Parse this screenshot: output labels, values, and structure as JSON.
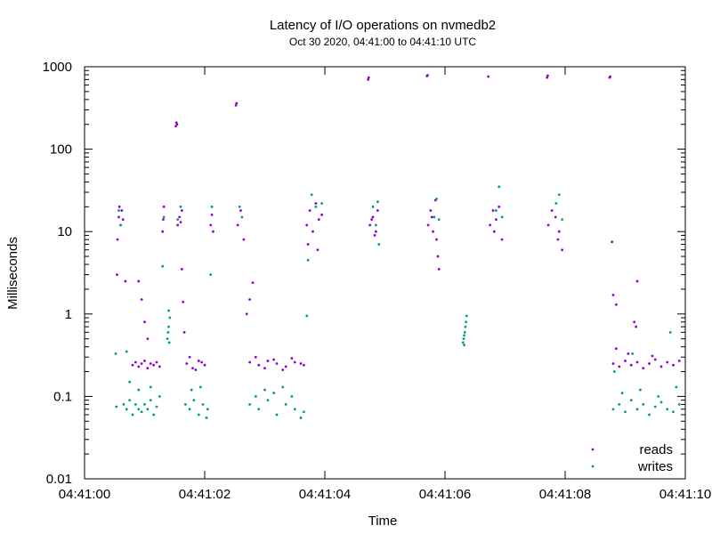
{
  "chart_data": {
    "type": "scatter",
    "title": "Latency of I/O operations on nvmedb2",
    "subtitle": "Oct 30 2020, 04:41:00 to 04:41:10 UTC",
    "xlabel": "Time",
    "ylabel": "Milliseconds",
    "xlim": [
      "04:41:00",
      "04:41:10"
    ],
    "x_ticks": [
      "04:41:00",
      "04:41:02",
      "04:41:04",
      "04:41:06",
      "04:41:08",
      "04:41:10"
    ],
    "ylim": [
      0.01,
      1000
    ],
    "y_scale": "log",
    "y_ticks": [
      "0.01",
      "0.1",
      "1",
      "10",
      "100",
      "1000"
    ],
    "grid": false,
    "legend_position": "bottom-right",
    "series": [
      {
        "name": "reads",
        "color": "#9400d3",
        "points": [
          [
            "04:41:00.54",
            3.0
          ],
          [
            "04:41:00.55",
            8.0
          ],
          [
            "04:41:00.57",
            15
          ],
          [
            "04:41:00.58",
            20
          ],
          [
            "04:41:00.60",
            12
          ],
          [
            "04:41:00.62",
            18
          ],
          [
            "04:41:00.64",
            14
          ],
          [
            "04:41:00.68",
            2.5
          ],
          [
            "04:41:00.80",
            0.24
          ],
          [
            "04:41:00.85",
            0.26
          ],
          [
            "04:41:00.90",
            0.23
          ],
          [
            "04:41:00.95",
            0.25
          ],
          [
            "04:41:01.00",
            0.27
          ],
          [
            "04:41:01.05",
            0.22
          ],
          [
            "04:41:01.10",
            0.25
          ],
          [
            "04:41:01.15",
            0.24
          ],
          [
            "04:41:01.20",
            0.26
          ],
          [
            "04:41:01.25",
            0.23
          ],
          [
            "04:41:00.90",
            2.5
          ],
          [
            "04:41:00.95",
            1.5
          ],
          [
            "04:41:01.00",
            0.8
          ],
          [
            "04:41:01.05",
            0.5
          ],
          [
            "04:41:01.30",
            10
          ],
          [
            "04:41:01.31",
            14
          ],
          [
            "04:41:01.32",
            20
          ],
          [
            "04:41:01.52",
            190
          ],
          [
            "04:41:01.53",
            210
          ],
          [
            "04:41:01.54",
            200
          ],
          [
            "04:41:01.55",
            12
          ],
          [
            "04:41:01.58",
            15
          ],
          [
            "04:41:01.60",
            13
          ],
          [
            "04:41:01.62",
            18
          ],
          [
            "04:41:01.62",
            3.5
          ],
          [
            "04:41:01.64",
            1.4
          ],
          [
            "04:41:01.66",
            0.6
          ],
          [
            "04:41:01.70",
            0.25
          ],
          [
            "04:41:01.80",
            0.22
          ],
          [
            "04:41:01.90",
            0.27
          ],
          [
            "04:41:02.00",
            0.24
          ],
          [
            "04:41:01.75",
            0.3
          ],
          [
            "04:41:01.85",
            0.21
          ],
          [
            "04:41:01.95",
            0.26
          ],
          [
            "04:41:02.10",
            12
          ],
          [
            "04:41:02.12",
            16
          ],
          [
            "04:41:02.14",
            10
          ],
          [
            "04:41:02.52",
            340
          ],
          [
            "04:41:02.53",
            360
          ],
          [
            "04:41:02.55",
            12
          ],
          [
            "04:41:02.60",
            18
          ],
          [
            "04:41:02.65",
            8
          ],
          [
            "04:41:02.70",
            1.0
          ],
          [
            "04:41:02.75",
            1.5
          ],
          [
            "04:41:02.80",
            2.4
          ],
          [
            "04:41:02.75",
            0.26
          ],
          [
            "04:41:02.90",
            0.24
          ],
          [
            "04:41:03.05",
            0.27
          ],
          [
            "04:41:03.20",
            0.25
          ],
          [
            "04:41:03.35",
            0.23
          ],
          [
            "04:41:03.50",
            0.26
          ],
          [
            "04:41:03.65",
            0.24
          ],
          [
            "04:41:02.85",
            0.3
          ],
          [
            "04:41:03.00",
            0.22
          ],
          [
            "04:41:03.15",
            0.28
          ],
          [
            "04:41:03.30",
            0.21
          ],
          [
            "04:41:03.45",
            0.29
          ],
          [
            "04:41:03.60",
            0.25
          ],
          [
            "04:41:03.70",
            12
          ],
          [
            "04:41:03.75",
            18
          ],
          [
            "04:41:03.80",
            10
          ],
          [
            "04:41:03.85",
            22
          ],
          [
            "04:41:03.90",
            14
          ],
          [
            "04:41:03.95",
            16
          ],
          [
            "04:41:03.72",
            7
          ],
          [
            "04:41:03.88",
            6
          ],
          [
            "04:41:04.72",
            700
          ],
          [
            "04:41:04.73",
            740
          ],
          [
            "04:41:04.75",
            12
          ],
          [
            "04:41:04.80",
            15
          ],
          [
            "04:41:04.85",
            10
          ],
          [
            "04:41:04.88",
            18
          ],
          [
            "04:41:04.78",
            14
          ],
          [
            "04:41:04.83",
            9
          ],
          [
            "04:41:05.70",
            770
          ],
          [
            "04:41:05.71",
            790
          ],
          [
            "04:41:05.72",
            12
          ],
          [
            "04:41:05.76",
            18
          ],
          [
            "04:41:05.80",
            10
          ],
          [
            "04:41:05.84",
            24
          ],
          [
            "04:41:05.78",
            15
          ],
          [
            "04:41:05.86",
            8
          ],
          [
            "04:41:05.88",
            5
          ],
          [
            "04:41:05.90",
            3.5
          ],
          [
            "04:41:06.72",
            760
          ],
          [
            "04:41:06.75",
            12
          ],
          [
            "04:41:06.80",
            18
          ],
          [
            "04:41:06.85",
            14
          ],
          [
            "04:41:06.90",
            20
          ],
          [
            "04:41:06.82",
            10
          ],
          [
            "04:41:06.95",
            8
          ],
          [
            "04:41:07.70",
            740
          ],
          [
            "04:41:07.71",
            780
          ],
          [
            "04:41:07.72",
            12
          ],
          [
            "04:41:07.78",
            18
          ],
          [
            "04:41:07.84",
            15
          ],
          [
            "04:41:07.90",
            10
          ],
          [
            "04:41:07.88",
            8
          ],
          [
            "04:41:07.95",
            6
          ],
          [
            "04:41:08.74",
            740
          ],
          [
            "04:41:08.75",
            760
          ],
          [
            "04:41:08.78",
            7.5
          ],
          [
            "04:41:08.80",
            1.7
          ],
          [
            "04:41:08.85",
            1.3
          ],
          [
            "04:41:09.20",
            2.5
          ],
          [
            "04:41:09.15",
            0.8
          ],
          [
            "04:41:09.18",
            0.7
          ],
          [
            "04:41:08.80",
            0.25
          ],
          [
            "04:41:08.90",
            0.23
          ],
          [
            "04:41:09.00",
            0.27
          ],
          [
            "04:41:09.10",
            0.24
          ],
          [
            "04:41:09.20",
            0.26
          ],
          [
            "04:41:09.30",
            0.22
          ],
          [
            "04:41:09.40",
            0.25
          ],
          [
            "04:41:09.50",
            0.28
          ],
          [
            "04:41:09.60",
            0.23
          ],
          [
            "04:41:09.70",
            0.26
          ],
          [
            "04:41:09.80",
            0.24
          ],
          [
            "04:41:09.90",
            0.27
          ],
          [
            "04:41:08.85",
            0.38
          ],
          [
            "04:41:09.05",
            0.33
          ],
          [
            "04:41:09.45",
            0.31
          ]
        ]
      },
      {
        "name": "writes",
        "color": "#009e73",
        "points": [
          [
            "04:41:00.52",
            0.33
          ],
          [
            "04:41:00.53",
            0.075
          ],
          [
            "04:41:00.57",
            18
          ],
          [
            "04:41:00.60",
            12
          ],
          [
            "04:41:00.65",
            0.08
          ],
          [
            "04:41:00.70",
            0.07
          ],
          [
            "04:41:00.75",
            0.09
          ],
          [
            "04:41:00.80",
            0.06
          ],
          [
            "04:41:00.85",
            0.08
          ],
          [
            "04:41:00.90",
            0.07
          ],
          [
            "04:41:00.95",
            0.065
          ],
          [
            "04:41:01.00",
            0.08
          ],
          [
            "04:41:01.05",
            0.07
          ],
          [
            "04:41:01.10",
            0.09
          ],
          [
            "04:41:01.15",
            0.06
          ],
          [
            "04:41:01.20",
            0.075
          ],
          [
            "04:41:00.70",
            0.35
          ],
          [
            "04:41:00.75",
            0.15
          ],
          [
            "04:41:00.90",
            0.12
          ],
          [
            "04:41:01.10",
            0.13
          ],
          [
            "04:41:01.25",
            0.1
          ],
          [
            "04:41:01.30",
            3.8
          ],
          [
            "04:41:01.32",
            15
          ],
          [
            "04:41:01.38",
            0.5
          ],
          [
            "04:41:01.39",
            0.6
          ],
          [
            "04:41:01.40",
            0.7
          ],
          [
            "04:41:01.41",
            0.45
          ],
          [
            "04:41:01.42",
            0.9
          ],
          [
            "04:41:01.40",
            1.1
          ],
          [
            "04:41:01.55",
            14
          ],
          [
            "04:41:01.60",
            20
          ],
          [
            "04:41:01.68",
            0.08
          ],
          [
            "04:41:01.75",
            0.07
          ],
          [
            "04:41:01.82",
            0.09
          ],
          [
            "04:41:01.90",
            0.06
          ],
          [
            "04:41:01.97",
            0.08
          ],
          [
            "04:41:02.05",
            0.07
          ],
          [
            "04:41:01.78",
            0.12
          ],
          [
            "04:41:01.93",
            0.13
          ],
          [
            "04:41:02.03",
            0.055
          ],
          [
            "04:41:02.10",
            3.0
          ],
          [
            "04:41:02.12",
            20
          ],
          [
            "04:41:02.58",
            20
          ],
          [
            "04:41:02.62",
            15
          ],
          [
            "04:41:02.75",
            0.08
          ],
          [
            "04:41:02.90",
            0.07
          ],
          [
            "04:41:03.05",
            0.09
          ],
          [
            "04:41:03.20",
            0.06
          ],
          [
            "04:41:03.35",
            0.08
          ],
          [
            "04:41:03.50",
            0.07
          ],
          [
            "04:41:03.65",
            0.065
          ],
          [
            "04:41:02.85",
            0.1
          ],
          [
            "04:41:03.00",
            0.12
          ],
          [
            "04:41:03.15",
            0.11
          ],
          [
            "04:41:03.30",
            0.13
          ],
          [
            "04:41:03.45",
            0.1
          ],
          [
            "04:41:03.60",
            0.055
          ],
          [
            "04:41:03.70",
            0.95
          ],
          [
            "04:41:03.72",
            4.5
          ],
          [
            "04:41:03.78",
            28
          ],
          [
            "04:41:03.85",
            20
          ],
          [
            "04:41:03.95",
            22
          ],
          [
            "04:41:04.80",
            20
          ],
          [
            "04:41:04.85",
            12
          ],
          [
            "04:41:04.90",
            7
          ],
          [
            "04:41:04.88",
            23
          ],
          [
            "04:41:05.82",
            15
          ],
          [
            "04:41:05.86",
            25
          ],
          [
            "04:41:05.90",
            14
          ],
          [
            "04:41:06.30",
            0.45
          ],
          [
            "04:41:06.31",
            0.5
          ],
          [
            "04:41:06.32",
            0.55
          ],
          [
            "04:41:06.33",
            0.6
          ],
          [
            "04:41:06.34",
            0.7
          ],
          [
            "04:41:06.35",
            0.8
          ],
          [
            "04:41:06.36",
            0.95
          ],
          [
            "04:41:06.32",
            0.42
          ],
          [
            "04:41:06.85",
            18
          ],
          [
            "04:41:06.90",
            35
          ],
          [
            "04:41:06.95",
            15
          ],
          [
            "04:41:07.85",
            22
          ],
          [
            "04:41:07.90",
            28
          ],
          [
            "04:41:07.95",
            14
          ],
          [
            "04:41:08.80",
            0.07
          ],
          [
            "04:41:08.90",
            0.08
          ],
          [
            "04:41:09.00",
            0.065
          ],
          [
            "04:41:09.10",
            0.09
          ],
          [
            "04:41:09.20",
            0.07
          ],
          [
            "04:41:09.30",
            0.08
          ],
          [
            "04:41:09.40",
            0.06
          ],
          [
            "04:41:09.50",
            0.075
          ],
          [
            "04:41:09.60",
            0.085
          ],
          [
            "04:41:09.70",
            0.07
          ],
          [
            "04:41:09.80",
            0.065
          ],
          [
            "04:41:09.90",
            0.08
          ],
          [
            "04:41:08.82",
            0.2
          ],
          [
            "04:41:08.95",
            0.11
          ],
          [
            "04:41:09.25",
            0.12
          ],
          [
            "04:41:09.55",
            0.1
          ],
          [
            "04:41:09.85",
            0.13
          ],
          [
            "04:41:09.75",
            0.6
          ],
          [
            "04:41:09.12",
            0.33
          ]
        ]
      }
    ]
  }
}
